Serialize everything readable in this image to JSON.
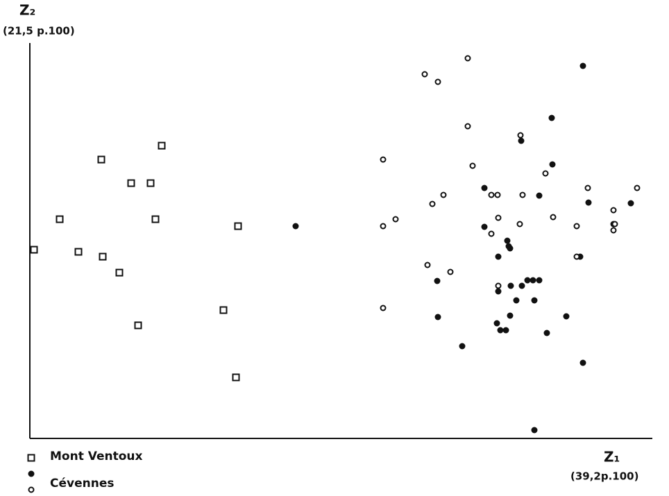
{
  "chart_data": {
    "type": "scatter",
    "xlabel": "Z₁",
    "xlabel_sub": "(39,2p.100)",
    "ylabel": "Z₂",
    "ylabel_sub": "(21,5 p.100)",
    "xlim": [
      0,
      897
    ],
    "ylim": [
      0,
      570
    ],
    "legend": "bottom-left",
    "series": [
      {
        "name": "Mont Ventoux",
        "marker": "square",
        "color": "#111",
        "x": [
          6,
          43,
          103,
          146,
          174,
          190,
          181,
          70,
          105,
          129,
          156,
          279,
          300,
          297
        ],
        "values": [
          272,
          316,
          402,
          368,
          368,
          422,
          316,
          269,
          262,
          239,
          163,
          185,
          306,
          88
        ]
      },
      {
        "name": "Cévennes",
        "marker": "filled-circle",
        "color": "#111",
        "x": [
          383,
          797,
          752,
          708,
          753,
          655,
          734,
          805,
          866,
          841,
          655,
          688,
          690,
          675,
          692,
          587,
          701,
          693,
          709,
          717,
          725,
          734,
          727,
          675,
          692,
          588,
          673,
          678,
          686,
          773,
          793,
          745,
          623,
          797,
          727
        ],
        "values": [
          306,
          537,
          462,
          429,
          395,
          361,
          350,
          340,
          339,
          309,
          305,
          285,
          277,
          262,
          274,
          227,
          199,
          220,
          220,
          228,
          228,
          228,
          199,
          212,
          177,
          175,
          166,
          156,
          156,
          176,
          262,
          152,
          133,
          109,
          12
        ]
      },
      {
        "marker": "open-circle",
        "color": "#111",
        "x": [
          631,
          569,
          588,
          631,
          707,
          509,
          638,
          743,
          804,
          875,
          596,
          580,
          665,
          674,
          710,
          841,
          527,
          509,
          675,
          754,
          706,
          788,
          841,
          665,
          843,
          788,
          573,
          606,
          675,
          509
        ],
        "values": [
          548,
          525,
          514,
          450,
          437,
          402,
          393,
          382,
          361,
          361,
          351,
          338,
          351,
          351,
          351,
          329,
          316,
          306,
          318,
          319,
          309,
          306,
          300,
          295,
          309,
          262,
          250,
          240,
          220,
          188
        ]
      }
    ]
  }
}
